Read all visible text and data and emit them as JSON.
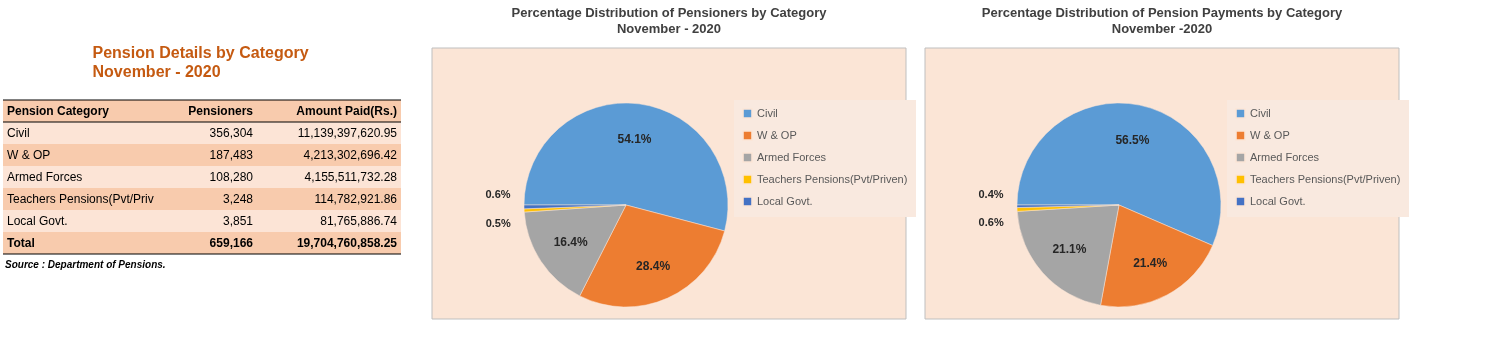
{
  "chart_data": [
    {
      "type": "other",
      "title": "Pension Details by  Category",
      "subtitle": "November - 2020",
      "xlabel": "Pension Category",
      "categories": [
        "Civil",
        "W & OP",
        "Armed Forces",
        "Teachers Pensions(Pvt/Priv",
        "Local Govt.",
        "Total"
      ],
      "series": [
        {
          "name": "Pensioners",
          "values": [
            356304,
            187483,
            108280,
            3248,
            3851,
            659166
          ],
          "colors": [
            "#fce4d6",
            "#f8cbad",
            "#fce4d6",
            "#f8cbad",
            "#fce4d6",
            "#f8cbad"
          ],
          "value_labels": [
            "356,304",
            "187,483",
            "108,280",
            "3,248",
            "3,851",
            "659,166"
          ]
        },
        {
          "name": "Amount Paid(Rs.)",
          "values": [
            11139397620.95,
            4213302696.42,
            4155511732.28,
            114782921.86,
            81765886.74,
            19704760858.25
          ],
          "colors": [
            "#fce4d6",
            "#f8cbad",
            "#fce4d6",
            "#f8cbad",
            "#fce4d6",
            "#f8cbad"
          ],
          "value_labels": [
            "11,139,397,620.95",
            "4,213,302,696.42",
            "4,155,511,732.28",
            "114,782,921.86",
            "81,765,886.74",
            "19,704,760,858.25"
          ]
        }
      ],
      "data_labels": true,
      "annotations": [
        "Source : Department of Pensions."
      ]
    },
    {
      "type": "pie",
      "title": "Percentage Distribution of Pensioners by Category",
      "subtitle": "November - 2020",
      "categories": [
        "Civil",
        "W & OP",
        "Armed Forces",
        "Teachers Pensions(Pvt/Priven)",
        "Local Govt."
      ],
      "values": [
        54.1,
        28.4,
        16.4,
        0.5,
        0.6
      ],
      "value_labels": [
        "54.1%",
        "28.4%",
        "16.4%",
        "0.5%",
        "0.6%"
      ],
      "colors": [
        "#5b9bd5",
        "#ed7d31",
        "#a5a5a5",
        "#ffc000",
        "#4472c4"
      ],
      "data_labels": true,
      "legend": "right"
    },
    {
      "type": "pie",
      "title": "Percentage Distribution of Pension Payments by Category",
      "subtitle": "November -2020",
      "categories": [
        "Civil",
        "W & OP",
        "Armed Forces",
        "Teachers Pensions(Pvt/Priven)",
        "Local Govt."
      ],
      "values": [
        56.5,
        21.4,
        21.1,
        0.6,
        0.4
      ],
      "value_labels": [
        "56.5%",
        "21.4%",
        "21.1%",
        "0.6%",
        "0.4%"
      ],
      "colors": [
        "#5b9bd5",
        "#ed7d31",
        "#a5a5a5",
        "#ffc000",
        "#4472c4"
      ],
      "data_labels": true,
      "legend": "right"
    }
  ]
}
